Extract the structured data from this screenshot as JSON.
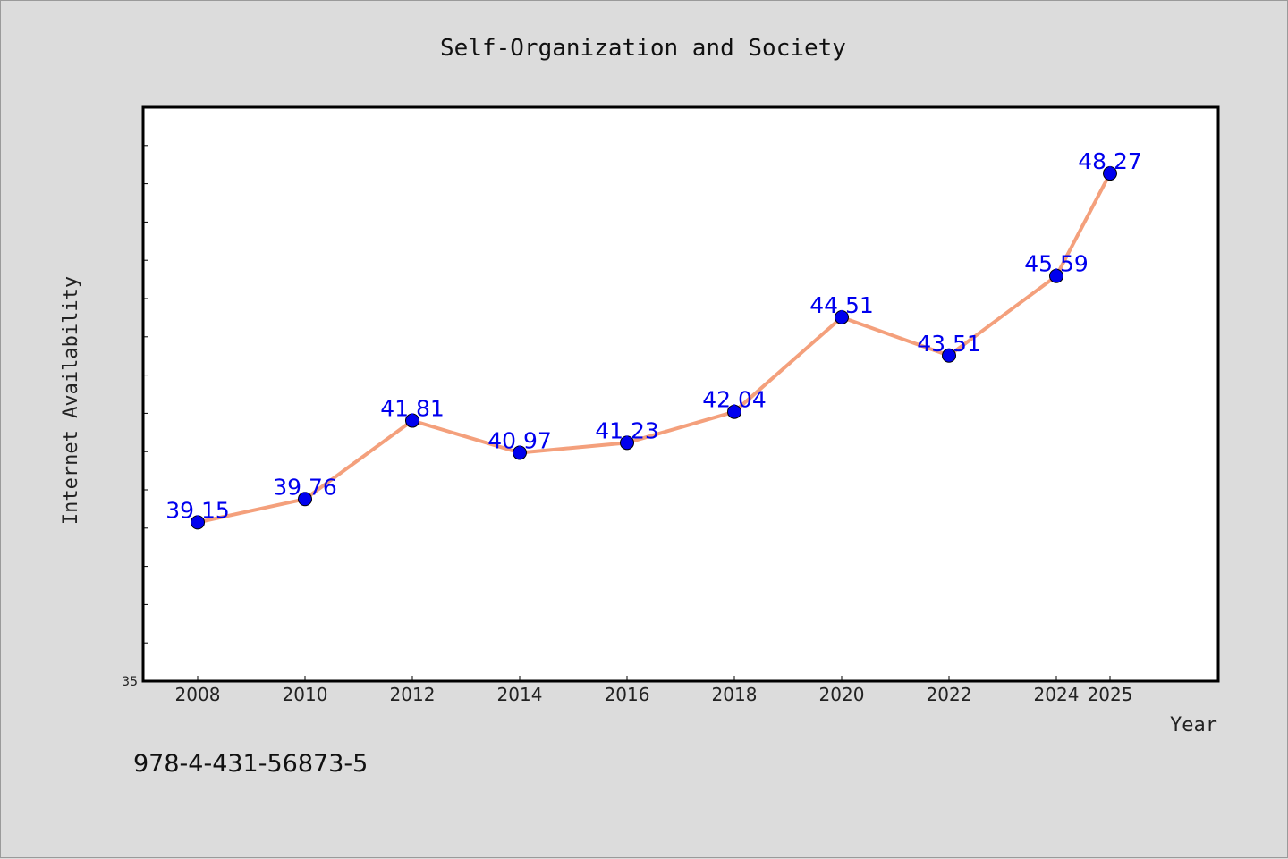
{
  "chart_data": {
    "type": "line",
    "title": "Self-Organization and Society",
    "xlabel": "Year",
    "ylabel": "Internet Availability",
    "categories": [
      "2008",
      "2010",
      "2012",
      "2014",
      "2016",
      "2018",
      "2020",
      "2022",
      "2024",
      "2025"
    ],
    "series": [
      {
        "values": [
          39.15,
          39.76,
          41.81,
          40.97,
          41.23,
          42.04,
          44.51,
          43.51,
          45.59,
          48.27
        ],
        "data_labels": [
          "39.15",
          "39.76",
          "41.81",
          "40.97",
          "41.23",
          "42.04",
          "44.51",
          "43.51",
          "45.59",
          "48.27"
        ]
      }
    ],
    "ylim": [
      35,
      50
    ],
    "y_tick_labels": [
      "35"
    ],
    "grid": false,
    "legend": "none",
    "colors": {
      "line": "#f4a07c",
      "marker": "#0000ee",
      "data_label": "#0000ee",
      "plot_bg": "#ffffff",
      "figure_bg": "#dcdcdc"
    }
  },
  "footer_text": "978-4-431-56873-5"
}
